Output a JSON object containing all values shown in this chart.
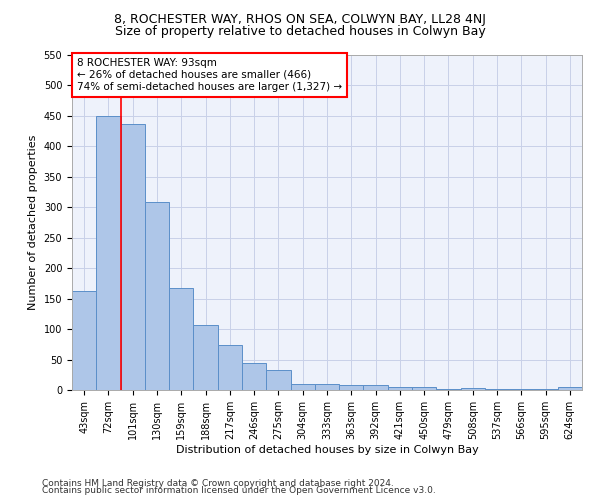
{
  "title1": "8, ROCHESTER WAY, RHOS ON SEA, COLWYN BAY, LL28 4NJ",
  "title2": "Size of property relative to detached houses in Colwyn Bay",
  "xlabel": "Distribution of detached houses by size in Colwyn Bay",
  "ylabel": "Number of detached properties",
  "categories": [
    "43sqm",
    "72sqm",
    "101sqm",
    "130sqm",
    "159sqm",
    "188sqm",
    "217sqm",
    "246sqm",
    "275sqm",
    "304sqm",
    "333sqm",
    "363sqm",
    "392sqm",
    "421sqm",
    "450sqm",
    "479sqm",
    "508sqm",
    "537sqm",
    "566sqm",
    "595sqm",
    "624sqm"
  ],
  "values": [
    162,
    450,
    437,
    308,
    167,
    106,
    74,
    45,
    33,
    10,
    10,
    8,
    8,
    5,
    5,
    1,
    4,
    1,
    1,
    1,
    5
  ],
  "bar_color": "#aec6e8",
  "bar_edge_color": "#5b8fc9",
  "annotation_text": "8 ROCHESTER WAY: 93sqm\n← 26% of detached houses are smaller (466)\n74% of semi-detached houses are larger (1,327) →",
  "annotation_box_color": "white",
  "annotation_box_edge_color": "red",
  "vline_color": "red",
  "ylim": [
    0,
    550
  ],
  "yticks": [
    0,
    50,
    100,
    150,
    200,
    250,
    300,
    350,
    400,
    450,
    500,
    550
  ],
  "background_color": "#eef2fb",
  "grid_color": "#c8d0e8",
  "footer1": "Contains HM Land Registry data © Crown copyright and database right 2024.",
  "footer2": "Contains public sector information licensed under the Open Government Licence v3.0.",
  "title1_fontsize": 9,
  "title2_fontsize": 9,
  "axis_label_fontsize": 8,
  "tick_fontsize": 7,
  "annotation_fontsize": 7.5,
  "footer_fontsize": 6.5
}
